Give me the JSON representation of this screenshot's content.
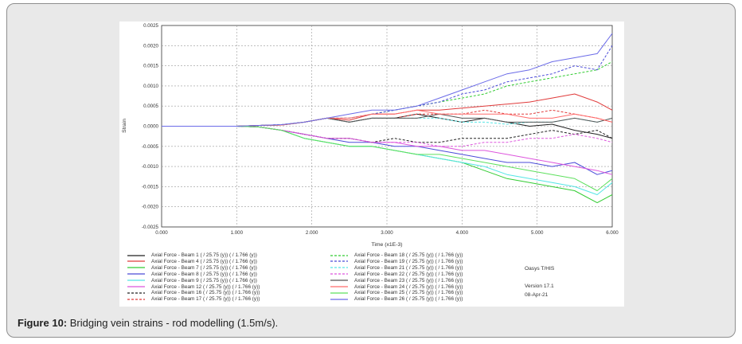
{
  "caption": {
    "label": "Figure 10:",
    "text": " Bridging vein strains - rod modelling (1.5m/s)."
  },
  "side_info": {
    "software": "Oasys T/HIS",
    "version": "Version 17.1",
    "date": "08-Apr-21"
  },
  "chart_data": {
    "type": "line",
    "title": "",
    "xlabel": "Time (x1E-3)",
    "ylabel": "Strain",
    "xlim": [
      0,
      6
    ],
    "ylim": [
      -0.0025,
      0.0025
    ],
    "x_ticks": [
      "0.000",
      "1.000",
      "2.000",
      "3.000",
      "4.000",
      "5.000",
      "6.000"
    ],
    "y_ticks": [
      "0.0025",
      "0.0020",
      "0.0015",
      "0.0010",
      "0.0005",
      "0.0000",
      "-0.0005",
      "-0.0010",
      "-0.0015",
      "-0.0020",
      "-0.0025"
    ],
    "grid": true,
    "x": [
      0,
      1,
      1.3,
      1.6,
      1.9,
      2.2,
      2.5,
      2.8,
      3.1,
      3.4,
      3.7,
      4.0,
      4.3,
      4.6,
      4.9,
      5.2,
      5.5,
      5.8,
      6.0
    ],
    "series": [
      {
        "name": "Axial Force - Beam 1 ( / 25.75 (y)) ( / 1.766 (y))",
        "color": "#222222",
        "dash": false,
        "values": [
          0,
          0,
          2e-05,
          3e-05,
          0.0001,
          0.0002,
          0.0001,
          0.0002,
          0.0002,
          0.0003,
          0.0002,
          0.0001,
          0.0002,
          0.0001,
          0.0,
          5e-05,
          -0.0001,
          -0.0002,
          -0.0003
        ]
      },
      {
        "name": "Axial Force - Beam 4 ( / 25.75 (y)) ( / 1.766 (y))",
        "color": "#e03a3a",
        "dash": false,
        "values": [
          0,
          0,
          2e-05,
          3e-05,
          0.0001,
          0.0002,
          0.00015,
          0.0003,
          0.0003,
          0.0004,
          0.0004,
          0.00045,
          0.0005,
          0.00055,
          0.0006,
          0.0007,
          0.0008,
          0.0006,
          0.0004
        ]
      },
      {
        "name": "Axial Force - Beam 7 ( / 25.75 (y)) ( / 1.766 (y))",
        "color": "#33cc33",
        "dash": false,
        "values": [
          0,
          0,
          -2e-05,
          -0.0001,
          -0.0003,
          -0.0004,
          -0.0005,
          -0.0005,
          -0.0006,
          -0.0007,
          -0.0008,
          -0.0009,
          -0.0011,
          -0.0013,
          -0.0014,
          -0.0015,
          -0.0016,
          -0.0019,
          -0.0017
        ]
      },
      {
        "name": "Axial Force - Beam 8 ( / 25.75 (y)) ( / 1.766 (y))",
        "color": "#4b4bd8",
        "dash": false,
        "values": [
          0,
          0,
          -2e-05,
          -0.0001,
          -0.0002,
          -0.0003,
          -0.0004,
          -0.0004,
          -0.0005,
          -0.0005,
          -0.0006,
          -0.0007,
          -0.0008,
          -0.0009,
          -0.0009,
          -0.001,
          -0.0009,
          -0.0012,
          -0.0011
        ]
      },
      {
        "name": "Axial Force - Beam 9 ( / 25.75 (y)) ( / 1.766 (y))",
        "color": "#55e5e5",
        "dash": false,
        "values": [
          0,
          0,
          -2e-05,
          -0.0001,
          -0.0003,
          -0.0004,
          -0.0005,
          -0.0005,
          -0.0006,
          -0.0007,
          -0.0008,
          -0.0009,
          -0.001,
          -0.0012,
          -0.0013,
          -0.0014,
          -0.0015,
          -0.0017,
          -0.0014
        ]
      },
      {
        "name": "Axial Force - Beam 12 ( / 25.75 (y)) ( / 1.766 (y))",
        "color": "#dd55dd",
        "dash": false,
        "values": [
          0,
          0,
          -2e-05,
          -0.0001,
          -0.0002,
          -0.0003,
          -0.0003,
          -0.0004,
          -0.0004,
          -0.0005,
          -0.0005,
          -0.0006,
          -0.0006,
          -0.0007,
          -0.0008,
          -0.0009,
          -0.001,
          -0.0011,
          -0.0012
        ]
      },
      {
        "name": "Axial Force - Beam 16 ( / 25.75 (y)) ( / 1.766 (y))",
        "color": "#222222",
        "dash": true,
        "values": [
          0,
          0,
          -2e-05,
          -0.0001,
          -0.0002,
          -0.0003,
          -0.0003,
          -0.0004,
          -0.0003,
          -0.0004,
          -0.0004,
          -0.0003,
          -0.0003,
          -0.0003,
          -0.0002,
          -0.0001,
          -0.0002,
          -0.0001,
          -0.0003
        ]
      },
      {
        "name": "Axial Force - Beam 17 ( / 25.75 (y)) ( / 1.766 (y))",
        "color": "#e03a3a",
        "dash": true,
        "values": [
          0,
          0,
          2e-05,
          3e-05,
          0.0001,
          0.0002,
          0.0001,
          0.0002,
          0.0002,
          0.0003,
          0.0003,
          0.0003,
          0.0004,
          0.0003,
          0.0003,
          0.0004,
          0.0003,
          0.0002,
          0.0001
        ]
      },
      {
        "name": "Axial Force - Beam 18 ( / 25.75 (y)) ( / 1.766 (y))",
        "color": "#33cc33",
        "dash": true,
        "values": [
          0,
          0,
          2e-05,
          4e-05,
          0.0001,
          0.0002,
          0.0002,
          0.0003,
          0.0004,
          0.0005,
          0.0006,
          0.0007,
          0.0008,
          0.001,
          0.0011,
          0.0012,
          0.0013,
          0.0014,
          0.0016
        ]
      },
      {
        "name": "Axial Force - Beam 19 ( / 25.75 (y)) ( / 1.766 (y))",
        "color": "#4b4bd8",
        "dash": true,
        "values": [
          0,
          0,
          2e-05,
          4e-05,
          0.0001,
          0.0002,
          0.0002,
          0.0003,
          0.0004,
          0.0005,
          0.0006,
          0.0008,
          0.0009,
          0.0011,
          0.0012,
          0.0013,
          0.0015,
          0.0014,
          0.002
        ]
      },
      {
        "name": "Axial Force - Beam 21 ( / 25.75 (y)) ( / 1.766 (y))",
        "color": "#55e5e5",
        "dash": true,
        "values": [
          0,
          0,
          2e-05,
          3e-05,
          0.0001,
          0.0002,
          0.0001,
          0.0002,
          0.0002,
          0.0002,
          0.0002,
          0.0001,
          0.0001,
          5e-05,
          0.0001,
          0.0001,
          0.0002,
          0.0001,
          0.0002
        ]
      },
      {
        "name": "Axial Force - Beam 22 ( / 25.75 (y)) ( / 1.766 (y))",
        "color": "#dd55dd",
        "dash": true,
        "values": [
          0,
          0,
          -2e-05,
          -0.0001,
          -0.0002,
          -0.0003,
          -0.0003,
          -0.0004,
          -0.0004,
          -0.0004,
          -0.0005,
          -0.0005,
          -0.0004,
          -0.0004,
          -0.0003,
          -0.0003,
          -0.0002,
          -0.0003,
          -0.0004
        ]
      },
      {
        "name": "Axial Force - Beam 23 ( / 25.75 (y)) ( / 1.766 (y))",
        "color": "#555555",
        "dash": false,
        "values": [
          0,
          0,
          2e-05,
          3e-05,
          0.0001,
          0.0002,
          0.0001,
          0.0002,
          0.0002,
          0.0002,
          0.0003,
          0.0002,
          0.0002,
          0.0001,
          0.0001,
          0.0001,
          0.0002,
          0.0001,
          0.0002
        ]
      },
      {
        "name": "Axial Force - Beam 24 ( / 25.75 (y)) ( / 1.766 (y))",
        "color": "#ff6b6b",
        "dash": false,
        "values": [
          0,
          0,
          2e-05,
          3e-05,
          0.0001,
          0.0002,
          0.0002,
          0.0003,
          0.0003,
          0.0004,
          0.0003,
          0.0003,
          0.0003,
          0.0003,
          0.0002,
          0.0002,
          0.0003,
          0.0002,
          0.0001
        ]
      },
      {
        "name": "Axial Force - Beam 25 ( / 25.75 (y)) ( / 1.766 (y))",
        "color": "#5ee05e",
        "dash": false,
        "values": [
          0,
          0,
          -2e-05,
          -0.0001,
          -0.0003,
          -0.0004,
          -0.0005,
          -0.0005,
          -0.0006,
          -0.0007,
          -0.0007,
          -0.0008,
          -0.0009,
          -0.001,
          -0.0011,
          -0.0012,
          -0.0013,
          -0.0016,
          -0.0013
        ]
      },
      {
        "name": "Axial Force - Beam 26 ( / 25.75 (y)) ( / 1.766 (y))",
        "color": "#6b6be8",
        "dash": false,
        "values": [
          0,
          0,
          2e-05,
          4e-05,
          0.0001,
          0.0002,
          0.0003,
          0.0004,
          0.0004,
          0.0005,
          0.0007,
          0.0009,
          0.0011,
          0.0013,
          0.0014,
          0.0016,
          0.0017,
          0.0018,
          0.0023
        ]
      }
    ]
  }
}
